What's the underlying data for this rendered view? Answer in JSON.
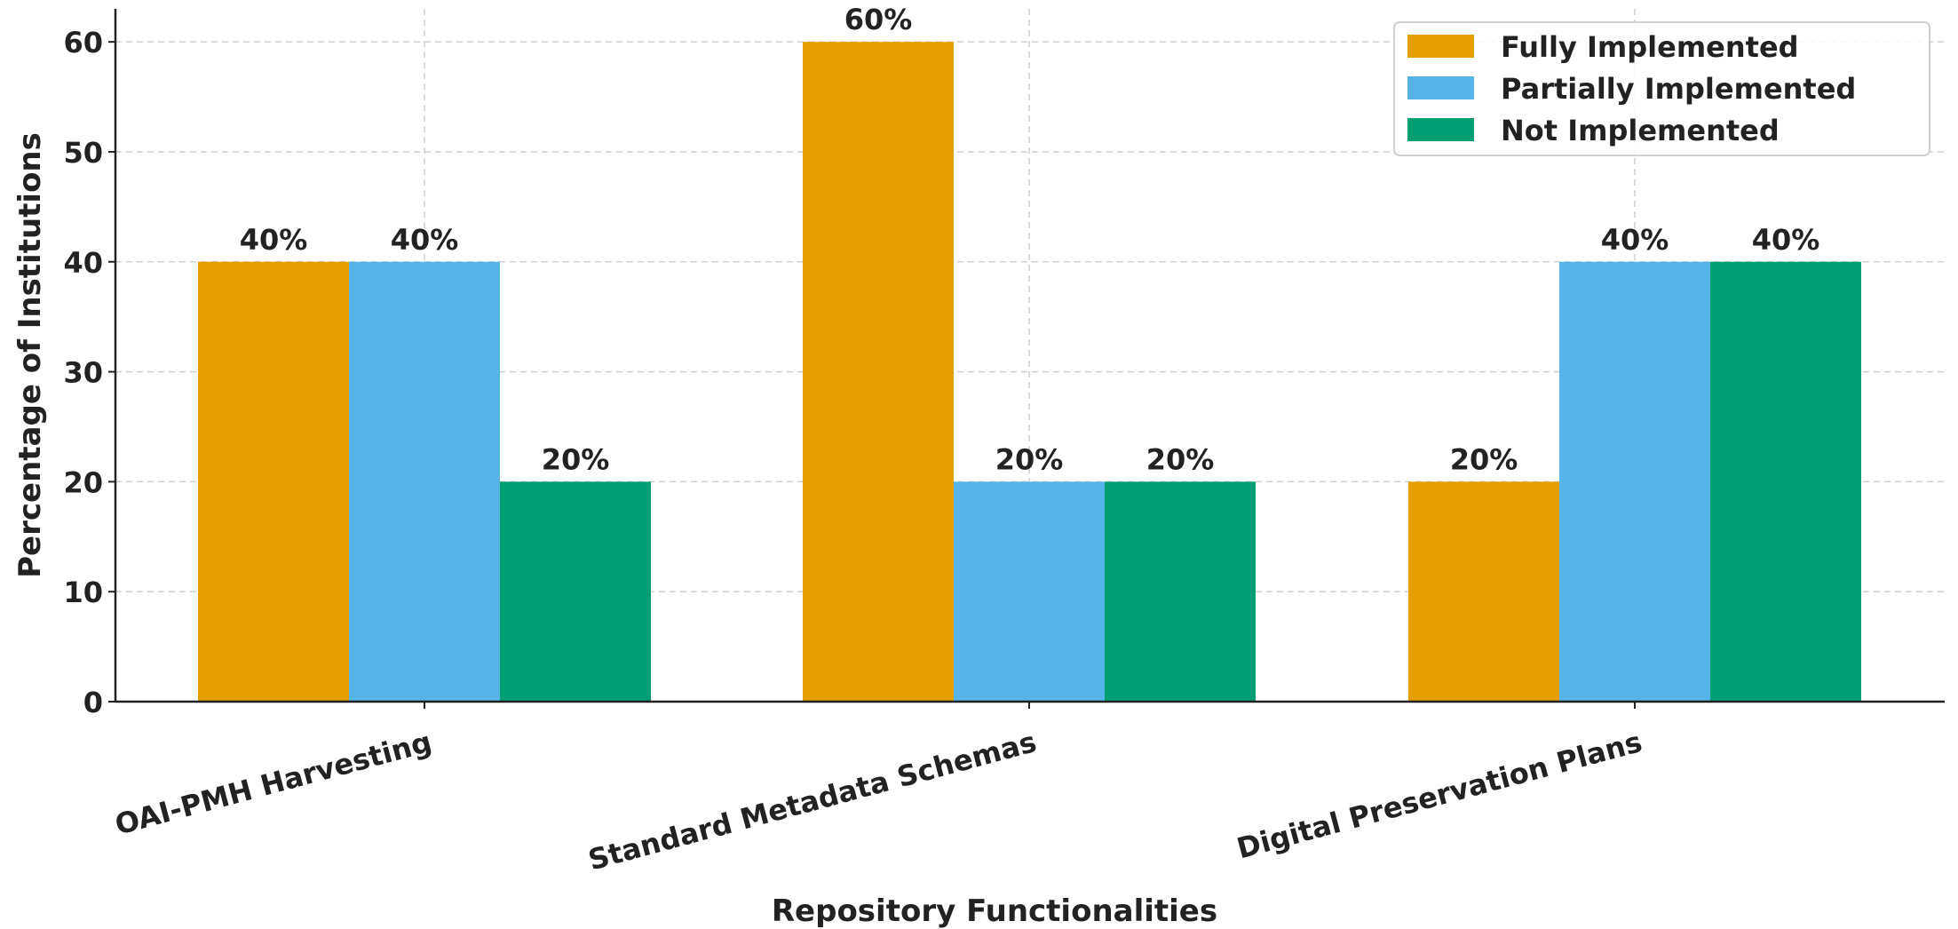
{
  "chart_data": {
    "type": "bar",
    "title": "",
    "xlabel": "Repository Functionalities",
    "ylabel": "Percentage of Institutions",
    "categories": [
      "OAI-PMH Harvesting",
      "Standard Metadata Schemas",
      "Digital Preservation Plans"
    ],
    "series": [
      {
        "name": "Fully Implemented",
        "color": "#E69F00",
        "values": [
          40,
          60,
          20
        ],
        "labels": [
          "40%",
          "60%",
          "20%"
        ]
      },
      {
        "name": "Partially Implemented",
        "color": "#56B4E9",
        "values": [
          40,
          20,
          40
        ],
        "labels": [
          "40%",
          "20%",
          "40%"
        ]
      },
      {
        "name": "Not Implemented",
        "color": "#009E73",
        "values": [
          20,
          20,
          40
        ],
        "labels": [
          "20%",
          "20%",
          "40%"
        ]
      }
    ],
    "ylim": [
      0,
      63
    ],
    "yticks": [
      0,
      10,
      20,
      30,
      40,
      50,
      60
    ],
    "grid": true,
    "legend_position": "top-right"
  }
}
